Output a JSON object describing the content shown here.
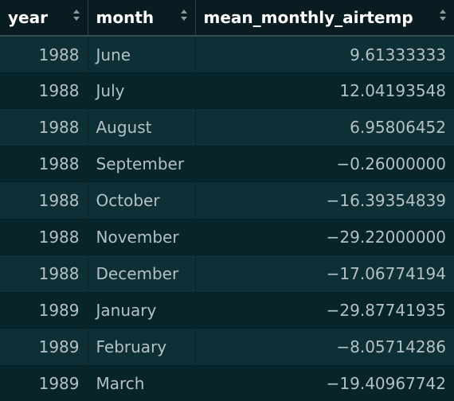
{
  "columns": [
    {
      "key": "year",
      "label": "year"
    },
    {
      "key": "month",
      "label": "month"
    },
    {
      "key": "mean_monthly_airtemp",
      "label": "mean_monthly_airtemp"
    }
  ],
  "rows": [
    {
      "year": "1988",
      "month": "June",
      "mean_monthly_airtemp": "9.61333333"
    },
    {
      "year": "1988",
      "month": "July",
      "mean_monthly_airtemp": "12.04193548"
    },
    {
      "year": "1988",
      "month": "August",
      "mean_monthly_airtemp": "6.95806452"
    },
    {
      "year": "1988",
      "month": "September",
      "mean_monthly_airtemp": "−0.26000000"
    },
    {
      "year": "1988",
      "month": "October",
      "mean_monthly_airtemp": "−16.39354839"
    },
    {
      "year": "1988",
      "month": "November",
      "mean_monthly_airtemp": "−29.22000000"
    },
    {
      "year": "1988",
      "month": "December",
      "mean_monthly_airtemp": "−17.06774194"
    },
    {
      "year": "1989",
      "month": "January",
      "mean_monthly_airtemp": "−29.87741935"
    },
    {
      "year": "1989",
      "month": "February",
      "mean_monthly_airtemp": "−8.05714286"
    },
    {
      "year": "1989",
      "month": "March",
      "mean_monthly_airtemp": "−19.40967742"
    }
  ],
  "colors": {
    "header_bg": "#081c22",
    "row_odd": "#0e2f36",
    "row_even": "#06242a",
    "text": "#b3c1c4",
    "header_text": "#ffffff"
  },
  "icons": {
    "sort": "sort-arrows-icon"
  }
}
